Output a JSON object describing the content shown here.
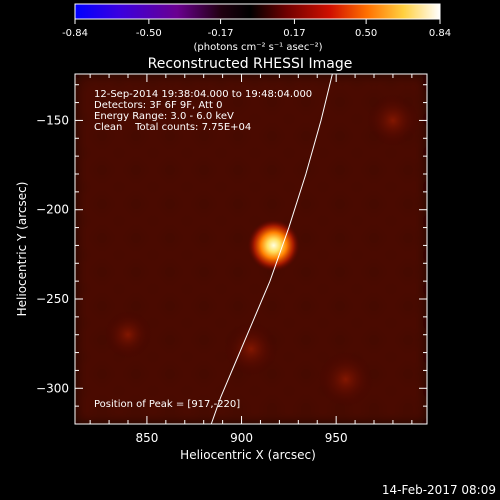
{
  "chart_data": {
    "type": "heatmap",
    "title": "Reconstructed RHESSI Image",
    "xlabel": "Heliocentric X (arcsec)",
    "ylabel": "Heliocentric Y (arcsec)",
    "xlim": [
      812,
      998
    ],
    "ylim": [
      -320,
      -124
    ],
    "xticks": [
      850,
      900,
      950
    ],
    "yticks": [
      -150,
      -200,
      -250,
      -300
    ],
    "colorbar": {
      "min": -0.84,
      "max": 0.84,
      "ticks": [
        "-0.84",
        "-0.50",
        "-0.17",
        "0.17",
        "0.50",
        "0.84"
      ],
      "unit_label": "(photons cm⁻² s⁻¹ asec⁻²)",
      "colors": [
        "#0000ff",
        "#6a00c8",
        "#000000",
        "#7a0000",
        "#e01000",
        "#ff9000",
        "#ffff80",
        "#ffffff"
      ]
    },
    "annotations": [
      "12-Sep-2014 19:38:04.000 to 19:48:04.000",
      "Detectors: 3F 6F 9F, Att 0",
      "Energy Range: 3.0 - 6.0 keV",
      "Clean    Total counts: 7.75E+04"
    ],
    "peak_label": "Position of Peak = [917,-220]",
    "peak": {
      "x": 917,
      "y": -220,
      "value": 0.84
    },
    "secondary_sources": [
      {
        "x": 905,
        "y": -278,
        "value": 0.3
      },
      {
        "x": 955,
        "y": -295,
        "value": 0.32
      },
      {
        "x": 980,
        "y": -150,
        "value": 0.28
      },
      {
        "x": 840,
        "y": -270,
        "value": 0.22
      }
    ],
    "limb": [
      [
        948,
        -124
      ],
      [
        942,
        -150
      ],
      [
        934,
        -180
      ],
      [
        925,
        -210
      ],
      [
        915,
        -240
      ],
      [
        905,
        -265
      ],
      [
        897,
        -285
      ],
      [
        889,
        -305
      ],
      [
        884,
        -320
      ]
    ],
    "footer_date": "14-Feb-2017 08:09"
  }
}
